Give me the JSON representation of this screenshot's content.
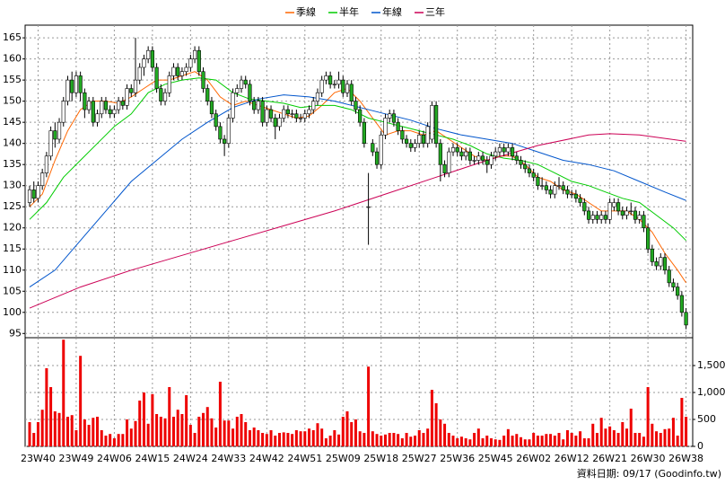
{
  "chart_data": {
    "type": "candlestick",
    "source": "資料日期: 09/17 (Goodinfo.tw)",
    "categories": [
      null,
      null,
      "23W40",
      null,
      null,
      null,
      null,
      null,
      null,
      null,
      null,
      "23W49",
      null,
      null,
      null,
      null,
      null,
      null,
      null,
      null,
      "24W06",
      null,
      null,
      null,
      null,
      null,
      null,
      null,
      null,
      "24W15",
      null,
      null,
      null,
      null,
      null,
      null,
      null,
      null,
      "24W24",
      null,
      null,
      null,
      null,
      null,
      null,
      null,
      null,
      "24W33",
      null,
      null,
      null,
      null,
      null,
      null,
      null,
      null,
      "24W42",
      null,
      null,
      null,
      null,
      null,
      null,
      null,
      null,
      "24W51",
      null,
      null,
      null,
      null,
      null,
      null,
      null,
      null,
      "25W09",
      null,
      null,
      null,
      null,
      null,
      null,
      null,
      null,
      "25W18",
      null,
      null,
      null,
      null,
      null,
      null,
      null,
      null,
      "25W27",
      null,
      null,
      null,
      null,
      null,
      null,
      null,
      null,
      "25W36",
      null,
      null,
      null,
      null,
      null,
      null,
      null,
      null,
      "25W45",
      null,
      null,
      null,
      null,
      null,
      null,
      null,
      null,
      "26W02",
      null,
      null,
      null,
      null,
      null,
      null,
      null,
      null,
      "26W12",
      null,
      null,
      null,
      null,
      null,
      null,
      null,
      null,
      "26W21",
      null,
      null,
      null,
      null,
      null,
      null,
      null,
      null,
      "26W30",
      null,
      null,
      null,
      null,
      null,
      null,
      null,
      null,
      "26W38"
    ],
    "ohlc": [
      [
        126,
        130,
        125,
        129
      ],
      [
        129,
        131,
        126,
        127
      ],
      [
        127,
        131,
        126,
        130
      ],
      [
        130,
        134,
        129,
        133
      ],
      [
        133,
        138,
        132,
        137
      ],
      [
        137,
        144,
        136,
        143
      ],
      [
        143,
        145,
        139,
        141
      ],
      [
        141,
        146,
        140,
        145
      ],
      [
        145,
        151,
        144,
        150
      ],
      [
        150,
        156,
        149,
        155
      ],
      [
        155,
        157,
        150,
        152
      ],
      [
        152,
        157,
        151,
        156
      ],
      [
        156,
        157,
        150,
        152
      ],
      [
        152,
        153,
        146,
        148
      ],
      [
        148,
        151,
        147,
        150
      ],
      [
        150,
        151,
        144,
        145
      ],
      [
        145,
        148,
        144,
        147
      ],
      [
        147,
        151,
        146,
        150
      ],
      [
        150,
        151,
        147,
        148
      ],
      [
        148,
        149,
        146,
        147
      ],
      [
        147,
        149,
        146,
        148
      ],
      [
        148,
        151,
        147,
        150
      ],
      [
        150,
        151,
        148,
        149
      ],
      [
        149,
        154,
        148,
        153
      ],
      [
        153,
        154,
        151,
        152
      ],
      [
        152,
        165,
        151,
        155
      ],
      [
        155,
        159,
        154,
        158
      ],
      [
        158,
        161,
        156,
        160
      ],
      [
        160,
        163,
        159,
        162
      ],
      [
        162,
        163,
        157,
        158
      ],
      [
        158,
        159,
        152,
        153
      ],
      [
        153,
        154,
        149,
        150
      ],
      [
        150,
        153,
        149,
        152
      ],
      [
        152,
        157,
        151,
        156
      ],
      [
        156,
        159,
        155,
        158
      ],
      [
        158,
        159,
        155,
        156
      ],
      [
        156,
        158,
        155,
        157
      ],
      [
        157,
        159,
        156,
        158
      ],
      [
        158,
        161,
        157,
        160
      ],
      [
        160,
        163,
        159,
        162
      ],
      [
        162,
        163,
        156,
        157
      ],
      [
        157,
        158,
        152,
        153
      ],
      [
        153,
        154,
        149,
        150
      ],
      [
        150,
        151,
        146,
        147
      ],
      [
        147,
        148,
        143,
        144
      ],
      [
        144,
        145,
        140,
        141
      ],
      [
        141,
        142,
        137,
        140
      ],
      [
        140,
        147,
        139,
        146
      ],
      [
        146,
        153,
        145,
        152
      ],
      [
        152,
        154,
        151,
        153
      ],
      [
        153,
        156,
        152,
        155
      ],
      [
        155,
        156,
        153,
        154
      ],
      [
        154,
        155,
        149,
        150
      ],
      [
        150,
        151,
        147,
        148
      ],
      [
        148,
        151,
        147,
        150
      ],
      [
        150,
        151,
        144,
        145
      ],
      [
        145,
        149,
        144,
        148
      ],
      [
        148,
        149,
        145,
        146
      ],
      [
        146,
        147,
        141,
        144
      ],
      [
        144,
        147,
        143,
        146
      ],
      [
        146,
        149,
        145,
        148
      ],
      [
        148,
        149,
        146,
        147
      ],
      [
        147,
        148,
        146,
        147
      ],
      [
        147,
        148,
        145,
        146
      ],
      [
        146,
        147,
        145,
        146
      ],
      [
        146,
        148,
        145,
        147
      ],
      [
        147,
        149,
        146,
        148
      ],
      [
        148,
        151,
        147,
        150
      ],
      [
        150,
        153,
        149,
        152
      ],
      [
        152,
        156,
        151,
        155
      ],
      [
        155,
        157,
        154,
        156
      ],
      [
        156,
        157,
        153,
        154
      ],
      [
        154,
        155,
        153,
        154
      ],
      [
        154,
        157,
        153,
        155
      ],
      [
        155,
        156,
        151,
        152
      ],
      [
        152,
        155,
        151,
        154
      ],
      [
        154,
        155,
        149,
        150
      ],
      [
        150,
        151,
        147,
        148
      ],
      [
        148,
        149,
        144,
        145
      ],
      [
        145,
        146,
        139,
        140
      ],
      [
        125,
        133,
        116,
        125
      ],
      [
        140,
        141,
        137,
        138
      ],
      [
        138,
        139,
        134,
        135
      ],
      [
        135,
        143,
        134,
        142
      ],
      [
        142,
        147,
        141,
        146
      ],
      [
        146,
        148,
        145,
        147
      ],
      [
        147,
        148,
        144,
        145
      ],
      [
        145,
        146,
        142,
        143
      ],
      [
        143,
        144,
        140,
        141
      ],
      [
        141,
        142,
        139,
        140
      ],
      [
        140,
        141,
        138,
        139
      ],
      [
        139,
        141,
        138,
        140
      ],
      [
        140,
        143,
        139,
        142
      ],
      [
        142,
        143,
        139,
        140
      ],
      [
        140,
        145,
        139,
        144
      ],
      [
        141,
        150,
        140,
        149
      ],
      [
        149,
        150,
        139,
        140
      ],
      [
        140,
        141,
        131,
        135
      ],
      [
        135,
        136,
        132,
        133
      ],
      [
        133,
        139,
        132,
        138
      ],
      [
        138,
        140,
        137,
        139
      ],
      [
        139,
        140,
        137,
        138
      ],
      [
        138,
        139,
        136,
        137
      ],
      [
        137,
        139,
        136,
        138
      ],
      [
        138,
        139,
        135,
        136
      ],
      [
        136,
        137,
        135,
        136
      ],
      [
        136,
        138,
        135,
        137
      ],
      [
        137,
        138,
        135,
        136
      ],
      [
        136,
        137,
        133,
        135
      ],
      [
        135,
        138,
        134,
        137
      ],
      [
        137,
        139,
        136,
        138
      ],
      [
        138,
        140,
        137,
        139
      ],
      [
        139,
        140,
        137,
        138
      ],
      [
        138,
        140,
        137,
        139
      ],
      [
        139,
        140,
        136,
        137
      ],
      [
        137,
        138,
        135,
        136
      ],
      [
        136,
        137,
        134,
        135
      ],
      [
        135,
        136,
        133,
        134
      ],
      [
        134,
        135,
        132,
        133
      ],
      [
        133,
        134,
        131,
        132
      ],
      [
        132,
        133,
        129,
        130
      ],
      [
        130,
        132,
        129,
        130
      ],
      [
        130,
        131,
        128,
        129
      ],
      [
        129,
        130,
        127,
        128
      ],
      [
        128,
        131,
        127,
        130
      ],
      [
        130,
        132,
        129,
        130
      ],
      [
        130,
        131,
        128,
        129
      ],
      [
        129,
        130,
        127,
        128
      ],
      [
        128,
        129,
        127,
        128
      ],
      [
        128,
        129,
        126,
        127
      ],
      [
        127,
        128,
        125,
        126
      ],
      [
        126,
        127,
        123,
        124
      ],
      [
        124,
        125,
        121,
        122
      ],
      [
        122,
        124,
        121,
        123
      ],
      [
        123,
        124,
        121,
        122
      ],
      [
        122,
        124,
        121,
        123
      ],
      [
        123,
        124,
        121,
        122
      ],
      [
        122,
        127,
        121,
        126
      ],
      [
        125,
        127,
        124,
        126
      ],
      [
        126,
        127,
        123,
        124
      ],
      [
        124,
        125,
        122,
        123
      ],
      [
        123,
        125,
        122,
        124
      ],
      [
        124,
        126,
        123,
        124
      ],
      [
        124,
        125,
        121,
        122
      ],
      [
        122,
        124,
        121,
        123
      ],
      [
        123,
        124,
        119,
        120
      ],
      [
        120,
        121,
        114,
        115
      ],
      [
        115,
        116,
        111,
        112
      ],
      [
        112,
        113,
        110,
        111
      ],
      [
        111,
        114,
        110,
        113
      ],
      [
        113,
        114,
        109,
        110
      ],
      [
        110,
        111,
        106,
        107
      ],
      [
        107,
        108,
        105,
        106
      ],
      [
        106,
        107,
        103,
        104
      ],
      [
        104,
        105,
        99,
        100
      ],
      [
        100,
        101,
        96,
        97
      ]
    ],
    "up_color": "#ffffff",
    "down_color": "#22aa22",
    "ylim": [
      94,
      168
    ],
    "yticks": [
      95,
      100,
      105,
      110,
      115,
      120,
      125,
      130,
      135,
      140,
      145,
      150,
      155,
      160,
      165
    ],
    "grid": true,
    "lines": [
      {
        "name": "季線",
        "color": "#ff6600",
        "x": [
          0,
          3,
          6,
          9,
          12,
          15,
          18,
          21,
          24,
          27,
          30,
          33,
          36,
          39,
          42,
          45,
          48,
          51,
          54,
          57,
          60,
          63,
          66,
          69,
          72,
          75,
          78,
          81,
          84,
          87,
          90,
          93,
          96,
          99,
          102,
          105,
          108,
          111,
          114,
          117,
          120,
          123,
          126,
          129,
          132,
          135,
          138,
          141,
          144,
          147,
          150,
          153,
          155
        ],
        "values": [
          125,
          128,
          136,
          143,
          148,
          150,
          150,
          149.5,
          151,
          153,
          155,
          155,
          156,
          157,
          155,
          151,
          149,
          150,
          149,
          148,
          147,
          146,
          146.5,
          149,
          152,
          153,
          150,
          146,
          142,
          143,
          143,
          142,
          143,
          141,
          139,
          137,
          136,
          137,
          137,
          135,
          132,
          131,
          129,
          128,
          126,
          124,
          124,
          124,
          122,
          119,
          114,
          110,
          107
        ]
      },
      {
        "name": "半年",
        "color": "#00cc00",
        "x": [
          0,
          4,
          8,
          12,
          16,
          20,
          24,
          28,
          32,
          36,
          40,
          44,
          48,
          52,
          56,
          60,
          64,
          68,
          72,
          76,
          80,
          84,
          88,
          92,
          96,
          100,
          104,
          108,
          112,
          116,
          120,
          124,
          128,
          132,
          136,
          140,
          144,
          148,
          152,
          155
        ],
        "values": [
          122,
          126,
          132,
          136,
          140,
          144,
          147,
          152,
          154,
          155,
          155.5,
          155,
          152,
          150.5,
          150,
          149.5,
          148.5,
          149,
          149,
          148,
          146,
          145,
          144,
          143,
          142,
          141,
          139.5,
          137.5,
          136.5,
          136,
          135,
          133,
          131,
          130,
          128.5,
          127,
          126,
          123,
          120,
          117
        ]
      },
      {
        "name": "年線",
        "color": "#0055cc",
        "x": [
          0,
          6,
          12,
          18,
          24,
          30,
          36,
          42,
          48,
          54,
          60,
          66,
          72,
          78,
          84,
          90,
          96,
          102,
          108,
          114,
          120,
          126,
          132,
          138,
          144,
          150,
          155
        ],
        "values": [
          106,
          110,
          117,
          124,
          131,
          136,
          141,
          145,
          148.5,
          150.5,
          151.5,
          151,
          150,
          148.5,
          147,
          145.5,
          143.5,
          142,
          141,
          140,
          138,
          136,
          135,
          133.5,
          131,
          128.5,
          126.5
        ]
      },
      {
        "name": "三年",
        "color": "#cc0055",
        "x": [
          0,
          12,
          24,
          36,
          48,
          60,
          72,
          84,
          96,
          108,
          120,
          132,
          137,
          144,
          155
        ],
        "values": [
          101,
          106,
          110,
          113.5,
          117,
          120.5,
          124,
          128,
          132,
          136,
          139.5,
          142,
          142.3,
          142,
          140.5
        ]
      }
    ],
    "volume": {
      "color": "#ee0000",
      "ylim": [
        0,
        2050
      ],
      "yticks": [
        0,
        500,
        {
          "value": 1000,
          "label": "1,000"
        },
        {
          "value": 1500,
          "label": "1,500"
        }
      ],
      "values": [
        450,
        250,
        450,
        680,
        1450,
        1100,
        650,
        620,
        1980,
        550,
        580,
        300,
        1680,
        500,
        400,
        530,
        550,
        300,
        200,
        230,
        150,
        230,
        230,
        500,
        330,
        470,
        850,
        1000,
        420,
        970,
        600,
        550,
        520,
        1100,
        550,
        680,
        600,
        950,
        400,
        250,
        550,
        620,
        730,
        520,
        350,
        1200,
        480,
        480,
        330,
        550,
        600,
        450,
        300,
        350,
        300,
        250,
        230,
        300,
        200,
        250,
        260,
        250,
        230,
        300,
        280,
        280,
        330,
        300,
        430,
        330,
        150,
        200,
        300,
        220,
        550,
        650,
        450,
        500,
        280,
        250,
        1480,
        280,
        230,
        200,
        220,
        250,
        250,
        230,
        150,
        250,
        180,
        200,
        300,
        250,
        330,
        1050,
        800,
        500,
        420,
        250,
        200,
        150,
        180,
        150,
        130,
        250,
        330,
        150,
        200,
        150,
        130,
        120,
        200,
        320,
        200,
        230,
        170,
        130,
        130,
        250,
        200,
        200,
        230,
        230,
        200,
        250,
        130,
        300,
        250,
        200,
        280,
        150,
        150,
        420,
        250,
        530,
        330,
        370,
        300,
        250,
        450,
        330,
        700,
        250,
        250,
        180,
        1100,
        420,
        280,
        250,
        320,
        330,
        530,
        200,
        900,
        550
      ]
    }
  }
}
